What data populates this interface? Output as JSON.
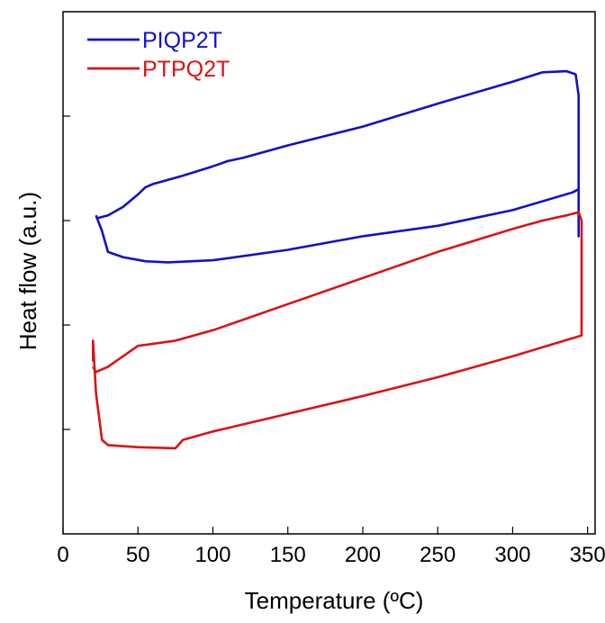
{
  "chart_data": {
    "type": "line",
    "title": "",
    "xlabel": "Temperature (ºC)",
    "ylabel": "Heat flow (a.u.)",
    "xlim": [
      0,
      355
    ],
    "ylim": [
      0,
      5
    ],
    "xticks": [
      0,
      50,
      100,
      150,
      200,
      250,
      300,
      350
    ],
    "yticks": [
      1,
      2,
      3,
      4
    ],
    "y_tick_labels_shown": false,
    "grid": false,
    "legend_position": "top-left",
    "series": [
      {
        "name": "PIQP2T",
        "color": "#1010cc",
        "x": [
          22,
          26,
          30,
          40,
          55,
          70,
          100,
          150,
          200,
          250,
          300,
          340,
          344,
          344,
          344,
          342,
          336,
          320,
          300,
          250,
          200,
          150,
          120,
          110,
          100,
          80,
          65,
          60,
          55,
          50,
          40,
          30,
          22
        ],
        "y": [
          3.05,
          2.9,
          2.7,
          2.65,
          2.61,
          2.6,
          2.62,
          2.72,
          2.85,
          2.95,
          3.1,
          3.27,
          3.3,
          2.85,
          4.2,
          4.4,
          4.43,
          4.42,
          4.33,
          4.12,
          3.9,
          3.72,
          3.6,
          3.57,
          3.52,
          3.43,
          3.37,
          3.35,
          3.32,
          3.25,
          3.13,
          3.05,
          3.02
        ]
      },
      {
        "name": "PTPQ2T",
        "color": "#dd1111",
        "x": [
          20,
          20,
          22,
          26,
          30,
          50,
          75,
          80,
          100,
          150,
          200,
          250,
          300,
          346,
          346,
          346,
          344,
          336,
          320,
          300,
          250,
          200,
          150,
          100,
          75,
          50,
          30,
          22,
          20
        ],
        "y": [
          1.65,
          1.85,
          1.35,
          0.9,
          0.85,
          0.83,
          0.82,
          0.9,
          0.98,
          1.15,
          1.32,
          1.5,
          1.7,
          1.9,
          1.95,
          3.0,
          3.08,
          3.05,
          3.0,
          2.92,
          2.7,
          2.45,
          2.2,
          1.95,
          1.85,
          1.8,
          1.6,
          1.55,
          1.6
        ]
      }
    ]
  }
}
